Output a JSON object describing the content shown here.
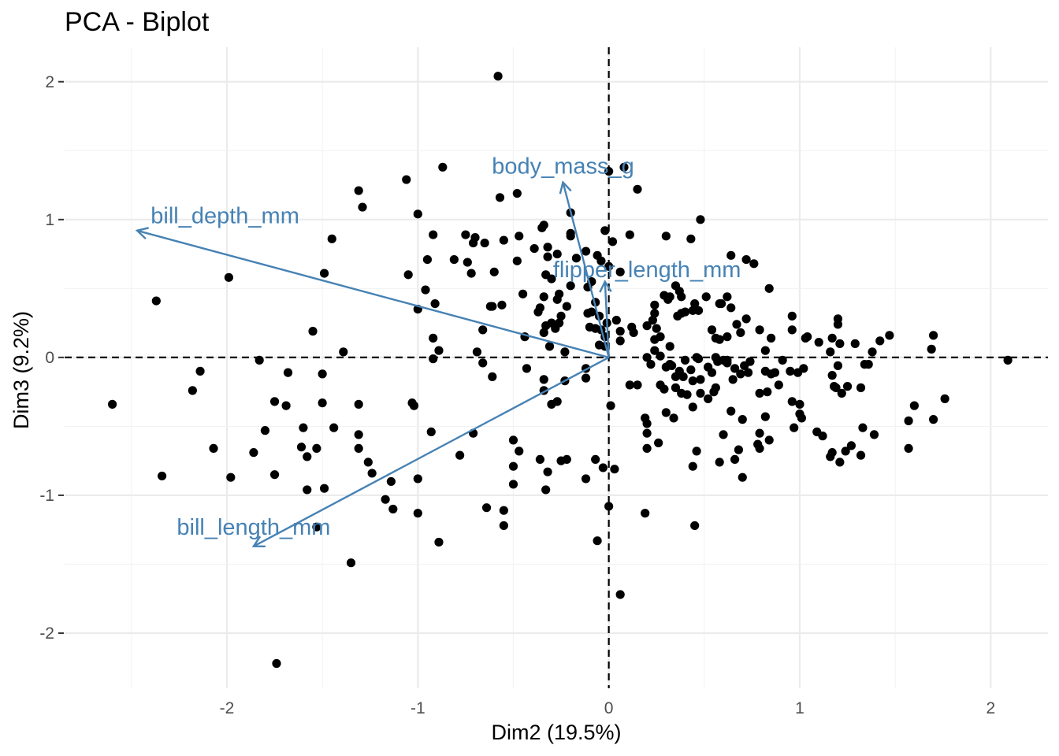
{
  "chart_data": {
    "type": "scatter",
    "title": "PCA - Biplot",
    "xlabel": "Dim2 (19.5%)",
    "ylabel": "Dim3 (9.2%)",
    "xlim": [
      -2.85,
      2.3
    ],
    "ylim": [
      -2.4,
      2.25
    ],
    "x_ticks": [
      -2,
      -1,
      0,
      1,
      2
    ],
    "y_ticks": [
      -2,
      -1,
      0,
      1,
      2
    ],
    "x_tick_labels": [
      "-2",
      "-1",
      "0",
      "1",
      "2"
    ],
    "y_tick_labels": [
      "-2",
      "-1",
      "0",
      "1",
      "2"
    ],
    "grid": true,
    "reference_lines": {
      "x": 0,
      "y": 0,
      "style": "dashed"
    },
    "point_color": "#000000",
    "variable_color": "#4682B4",
    "variables": [
      {
        "name": "bill_depth_mm",
        "x": -2.47,
        "y": 0.92,
        "label_x": -2.01,
        "label_y": 1.03
      },
      {
        "name": "body_mass_g",
        "x": -0.24,
        "y": 1.27,
        "label_x": -0.24,
        "label_y": 1.39
      },
      {
        "name": "flipper_length_mm",
        "x": -0.02,
        "y": 0.55,
        "label_x": 0.2,
        "label_y": 0.64
      },
      {
        "name": "bill_length_mm",
        "x": -1.86,
        "y": -1.37,
        "label_x": -1.86,
        "label_y": -1.23
      }
    ],
    "points": [
      [
        -0.58,
        2.04
      ],
      [
        -0.87,
        1.38
      ],
      [
        0.08,
        1.38
      ],
      [
        0.0,
        1.35
      ],
      [
        -1.31,
        1.21
      ],
      [
        -1.06,
        1.29
      ],
      [
        -0.48,
        1.19
      ],
      [
        -0.57,
        1.16
      ],
      [
        0.15,
        1.22
      ],
      [
        -1.29,
        1.09
      ],
      [
        -1.0,
        1.04
      ],
      [
        -0.2,
        1.05
      ],
      [
        0.48,
        1.0
      ],
      [
        -0.35,
        0.94
      ],
      [
        -0.2,
        0.9
      ],
      [
        -0.02,
        0.92
      ],
      [
        -0.92,
        0.89
      ],
      [
        -0.75,
        0.89
      ],
      [
        -0.7,
        0.87
      ],
      [
        -0.71,
        0.83
      ],
      [
        -0.65,
        0.83
      ],
      [
        -0.55,
        0.85
      ],
      [
        -0.47,
        0.88
      ],
      [
        -0.34,
        0.96
      ],
      [
        -0.2,
        0.88
      ],
      [
        0.11,
        0.89
      ],
      [
        0.3,
        0.88
      ],
      [
        0.02,
        0.84
      ],
      [
        -1.45,
        0.86
      ],
      [
        -1.99,
        0.58
      ],
      [
        -1.49,
        0.61
      ],
      [
        -1.05,
        0.6
      ],
      [
        -0.95,
        0.71
      ],
      [
        -0.81,
        0.71
      ],
      [
        -0.74,
        0.69
      ],
      [
        -0.72,
        0.61
      ],
      [
        -0.6,
        0.62
      ],
      [
        -0.48,
        0.7
      ],
      [
        -0.39,
        0.79
      ],
      [
        -0.32,
        0.8
      ],
      [
        -0.32,
        0.73
      ],
      [
        -0.27,
        0.75
      ],
      [
        -0.17,
        0.72
      ],
      [
        -0.12,
        0.77
      ],
      [
        -0.06,
        0.74
      ],
      [
        -0.04,
        0.7
      ],
      [
        0.0,
        0.66
      ],
      [
        -0.2,
        0.52
      ],
      [
        -0.11,
        0.51
      ],
      [
        -0.09,
        0.55
      ],
      [
        -0.33,
        0.6
      ],
      [
        -0.3,
        0.57
      ],
      [
        0.06,
        0.62
      ],
      [
        -2.37,
        0.41
      ],
      [
        -0.96,
        0.49
      ],
      [
        -0.91,
        0.39
      ],
      [
        -1.0,
        0.35
      ],
      [
        -0.61,
        0.37
      ],
      [
        -0.56,
        0.38
      ],
      [
        -0.45,
        0.46
      ],
      [
        -0.36,
        0.36
      ],
      [
        -0.34,
        0.44
      ],
      [
        -0.26,
        0.46
      ],
      [
        -0.27,
        0.42
      ],
      [
        -0.22,
        0.37
      ],
      [
        -0.07,
        0.4
      ],
      [
        -0.09,
        0.33
      ],
      [
        -0.05,
        0.3
      ],
      [
        -0.25,
        0.3
      ],
      [
        -0.3,
        0.25
      ],
      [
        -0.33,
        0.23
      ],
      [
        -0.34,
        0.18
      ],
      [
        -0.26,
        0.25
      ],
      [
        -0.28,
        0.21
      ],
      [
        -0.11,
        0.32
      ],
      [
        -0.1,
        0.22
      ],
      [
        -0.07,
        0.21
      ],
      [
        -0.01,
        0.25
      ],
      [
        -0.04,
        0.2
      ],
      [
        -0.02,
        0.15
      ],
      [
        -0.05,
        0.09
      ],
      [
        -0.02,
        0.08
      ],
      [
        -0.66,
        0.2
      ],
      [
        -0.44,
        0.15
      ],
      [
        -0.62,
        0.37
      ],
      [
        -0.37,
        0.33
      ],
      [
        -1.55,
        0.19
      ],
      [
        -1.39,
        0.04
      ],
      [
        -0.92,
        0.14
      ],
      [
        -0.89,
        0.05
      ],
      [
        -0.92,
        -0.01
      ],
      [
        -0.69,
        0.04
      ],
      [
        -0.66,
        -0.04
      ],
      [
        -0.43,
        -0.08
      ],
      [
        -0.61,
        -0.14
      ],
      [
        -0.34,
        -0.16
      ],
      [
        -0.31,
        0.08
      ],
      [
        -0.23,
        0.04
      ],
      [
        -0.12,
        -0.08
      ],
      [
        -0.23,
        -0.17
      ],
      [
        -0.12,
        -0.15
      ],
      [
        -0.34,
        -0.24
      ],
      [
        -0.27,
        -0.32
      ],
      [
        -0.3,
        -0.34
      ],
      [
        -2.14,
        -0.1
      ],
      [
        -2.18,
        -0.24
      ],
      [
        -2.6,
        -0.34
      ],
      [
        -1.83,
        -0.02
      ],
      [
        -1.68,
        -0.11
      ],
      [
        -1.5,
        -0.12
      ],
      [
        -1.75,
        -0.32
      ],
      [
        -1.69,
        -0.35
      ],
      [
        -1.5,
        -0.33
      ],
      [
        -1.31,
        -0.34
      ],
      [
        -1.03,
        -0.33
      ],
      [
        -1.02,
        -0.35
      ],
      [
        -2.07,
        -0.66
      ],
      [
        -1.8,
        -0.53
      ],
      [
        -1.6,
        -0.51
      ],
      [
        -1.53,
        -0.66
      ],
      [
        -1.61,
        -0.65
      ],
      [
        -1.58,
        -0.72
      ],
      [
        -1.44,
        -0.51
      ],
      [
        -1.31,
        -0.56
      ],
      [
        -1.31,
        -0.66
      ],
      [
        -1.26,
        -0.76
      ],
      [
        -1.24,
        -0.84
      ],
      [
        -1.86,
        -0.69
      ],
      [
        -1.75,
        -0.85
      ],
      [
        -2.34,
        -0.86
      ],
      [
        -1.98,
        -0.87
      ],
      [
        -1.58,
        -0.96
      ],
      [
        -1.49,
        -0.95
      ],
      [
        -1.14,
        -0.9
      ],
      [
        -1.17,
        -1.03
      ],
      [
        -1.13,
        -1.1
      ],
      [
        -1.0,
        -0.88
      ],
      [
        -1.0,
        -1.13
      ],
      [
        -0.93,
        -0.54
      ],
      [
        -0.78,
        -0.71
      ],
      [
        -0.71,
        -0.55
      ],
      [
        -0.5,
        -0.6
      ],
      [
        -0.47,
        -0.68
      ],
      [
        -0.5,
        -0.79
      ],
      [
        -0.5,
        -0.92
      ],
      [
        -0.36,
        -0.74
      ],
      [
        -0.32,
        -0.83
      ],
      [
        -0.33,
        -0.96
      ],
      [
        -0.22,
        -0.74
      ],
      [
        -0.25,
        -0.75
      ],
      [
        -0.07,
        -0.74
      ],
      [
        -0.03,
        -0.8
      ],
      [
        -0.12,
        -0.88
      ],
      [
        -0.64,
        -1.09
      ],
      [
        -0.55,
        -1.11
      ],
      [
        -0.55,
        -1.22
      ],
      [
        -0.89,
        -1.34
      ],
      [
        -0.06,
        -1.33
      ],
      [
        0.0,
        -1.08
      ],
      [
        0.19,
        -1.13
      ],
      [
        -1.53,
        -1.23
      ],
      [
        -1.35,
        -1.49
      ],
      [
        0.06,
        -1.72
      ],
      [
        -1.74,
        -2.22
      ],
      [
        0.03,
        -0.81
      ],
      [
        0.01,
        -0.35
      ],
      [
        0.11,
        -0.2
      ],
      [
        0.15,
        -0.2
      ],
      [
        0.19,
        -0.44
      ],
      [
        0.2,
        -0.48
      ],
      [
        0.2,
        -0.55
      ],
      [
        0.2,
        -0.66
      ],
      [
        0.3,
        -0.4
      ],
      [
        0.26,
        -0.62
      ],
      [
        0.29,
        -0.23
      ],
      [
        0.34,
        -0.44
      ],
      [
        0.44,
        -0.79
      ],
      [
        0.46,
        -0.68
      ],
      [
        0.44,
        -0.36
      ],
      [
        0.45,
        -1.22
      ],
      [
        0.22,
        -0.05
      ],
      [
        0.2,
        0.0
      ],
      [
        0.27,
        -0.2
      ],
      [
        0.35,
        -0.22
      ],
      [
        0.38,
        -0.26
      ],
      [
        0.41,
        -0.27
      ],
      [
        0.35,
        -0.14
      ],
      [
        0.33,
        -0.06
      ],
      [
        0.4,
        -0.02
      ],
      [
        0.43,
        -0.09
      ],
      [
        0.48,
        -0.16
      ],
      [
        0.48,
        -0.26
      ],
      [
        0.52,
        -0.3
      ],
      [
        0.55,
        -0.25
      ],
      [
        0.54,
        -0.11
      ],
      [
        0.57,
        -0.03
      ],
      [
        0.62,
        -0.04
      ],
      [
        0.65,
        -0.16
      ],
      [
        0.71,
        -0.06
      ],
      [
        0.74,
        -0.03
      ],
      [
        0.6,
        -0.56
      ],
      [
        0.58,
        -0.76
      ],
      [
        0.66,
        -0.74
      ],
      [
        0.64,
        -0.39
      ],
      [
        0.68,
        -0.67
      ],
      [
        0.7,
        -0.45
      ],
      [
        0.7,
        -0.87
      ],
      [
        0.79,
        -0.55
      ],
      [
        0.78,
        -0.63
      ],
      [
        0.79,
        -0.66
      ],
      [
        0.79,
        -0.26
      ],
      [
        0.82,
        -0.43
      ],
      [
        0.84,
        -0.6
      ],
      [
        0.87,
        -0.11
      ],
      [
        0.89,
        -0.2
      ],
      [
        0.96,
        -0.32
      ],
      [
        0.97,
        -0.51
      ],
      [
        1.0,
        -0.34
      ],
      [
        1.0,
        -0.41
      ],
      [
        1.01,
        -0.44
      ],
      [
        1.09,
        -0.54
      ],
      [
        1.12,
        -0.57
      ],
      [
        1.16,
        -0.72
      ],
      [
        1.17,
        -0.69
      ],
      [
        1.21,
        -0.76
      ],
      [
        1.24,
        -0.68
      ],
      [
        1.27,
        -0.64
      ],
      [
        1.32,
        -0.71
      ],
      [
        1.33,
        -0.51
      ],
      [
        1.39,
        -0.56
      ],
      [
        1.57,
        -0.66
      ],
      [
        1.6,
        -0.35
      ],
      [
        1.57,
        -0.46
      ],
      [
        1.7,
        -0.45
      ],
      [
        1.76,
        -0.3
      ],
      [
        1.18,
        -0.21
      ],
      [
        1.19,
        -0.22
      ],
      [
        1.22,
        -0.26
      ],
      [
        1.25,
        -0.21
      ],
      [
        1.32,
        -0.22
      ],
      [
        1.17,
        -0.13
      ],
      [
        1.2,
        -0.06
      ],
      [
        1.36,
        -0.05
      ],
      [
        1.34,
        -0.05
      ],
      [
        1.1,
        0.11
      ],
      [
        1.17,
        0.14
      ],
      [
        1.21,
        0.1
      ],
      [
        1.29,
        0.1
      ],
      [
        1.16,
        0.04
      ],
      [
        1.04,
        0.15
      ],
      [
        1.03,
        0.14
      ],
      [
        0.96,
        0.2
      ],
      [
        0.96,
        0.3
      ],
      [
        1.2,
        0.24
      ],
      [
        1.2,
        0.28
      ],
      [
        1.38,
        0.04
      ],
      [
        1.42,
        0.12
      ],
      [
        1.47,
        0.16
      ],
      [
        1.7,
        0.16
      ],
      [
        1.69,
        0.06
      ],
      [
        2.09,
        -0.02
      ],
      [
        0.91,
        -0.02
      ],
      [
        0.85,
        -0.12
      ],
      [
        0.83,
        -0.25
      ],
      [
        0.82,
        0.05
      ],
      [
        0.85,
        0.14
      ],
      [
        0.84,
        0.5
      ],
      [
        0.72,
        0.71
      ],
      [
        0.76,
        0.68
      ],
      [
        0.64,
        0.74
      ],
      [
        0.62,
        0.44
      ],
      [
        0.64,
        0.36
      ],
      [
        0.59,
        0.39
      ],
      [
        0.51,
        0.44
      ],
      [
        0.45,
        0.39
      ],
      [
        0.38,
        0.44
      ],
      [
        0.32,
        0.44
      ],
      [
        0.29,
        0.45
      ],
      [
        0.37,
        0.48
      ],
      [
        0.35,
        0.52
      ],
      [
        0.43,
        0.86
      ],
      [
        0.23,
        0.27
      ],
      [
        0.24,
        0.38
      ],
      [
        0.24,
        0.32
      ],
      [
        0.31,
        0.42
      ],
      [
        0.36,
        0.3
      ],
      [
        0.38,
        0.32
      ],
      [
        0.4,
        0.33
      ],
      [
        0.44,
        0.34
      ],
      [
        0.54,
        0.2
      ],
      [
        0.56,
        0.14
      ],
      [
        0.58,
        0.13
      ],
      [
        0.62,
        0.15
      ],
      [
        0.69,
        0.18
      ],
      [
        0.79,
        0.2
      ],
      [
        0.72,
        0.28
      ],
      [
        0.67,
        0.24
      ],
      [
        0.58,
        0.39
      ],
      [
        0.47,
        0.34
      ],
      [
        0.32,
        0.08
      ],
      [
        0.27,
        0.15
      ],
      [
        0.25,
        0.21
      ],
      [
        0.24,
        0.13
      ],
      [
        0.2,
        0.23
      ],
      [
        0.12,
        0.22
      ],
      [
        0.13,
        0.18
      ],
      [
        0.04,
        0.27
      ],
      [
        0.06,
        0.19
      ],
      [
        0.06,
        0.12
      ],
      [
        0.24,
        0.05
      ],
      [
        0.27,
        0.01
      ],
      [
        0.32,
        -0.05
      ],
      [
        0.3,
        -0.07
      ],
      [
        0.37,
        -0.1
      ],
      [
        0.39,
        -0.14
      ],
      [
        0.44,
        -0.17
      ],
      [
        0.56,
        -0.22
      ],
      [
        0.52,
        -0.07
      ],
      [
        0.47,
        -0.01
      ],
      [
        0.46,
        0.0
      ],
      [
        0.56,
        0.0
      ],
      [
        0.6,
        -0.02
      ],
      [
        0.62,
        -0.02
      ],
      [
        0.66,
        -0.08
      ],
      [
        0.69,
        -0.12
      ],
      [
        0.73,
        -0.11
      ],
      [
        0.82,
        -0.1
      ],
      [
        0.95,
        -0.1
      ],
      [
        0.99,
        -0.11
      ],
      [
        1.02,
        -0.08
      ]
    ]
  }
}
